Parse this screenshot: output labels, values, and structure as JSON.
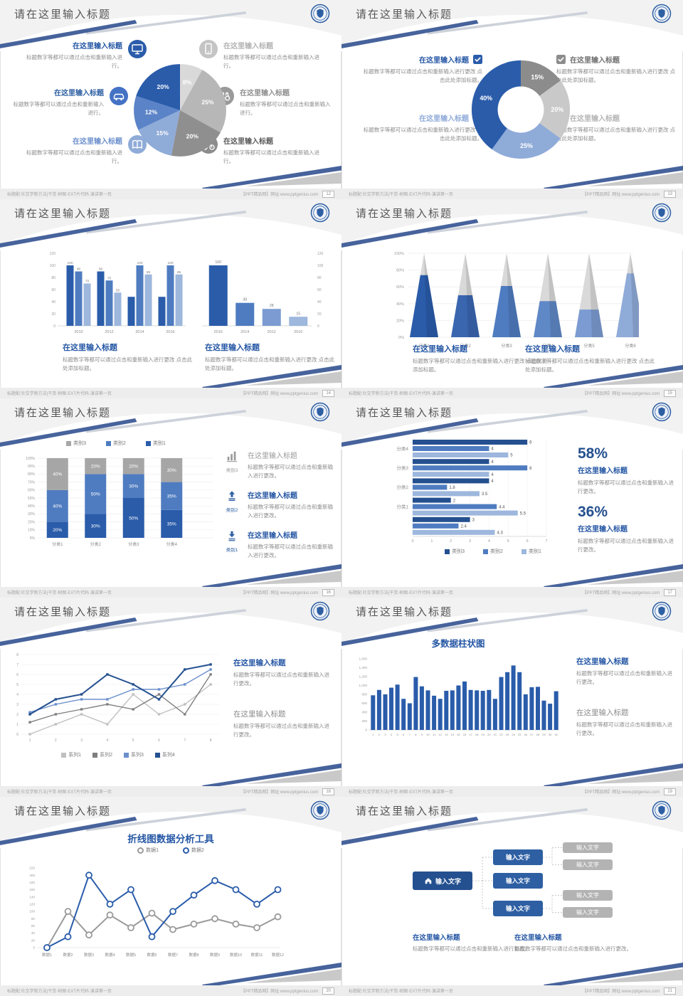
{
  "common": {
    "slide_title": "请在这里输入标题",
    "block_heading": "在这里输入标题",
    "body_a": "标题数字等都可以通过点击和重新输入进行。",
    "body_b": "标题数字等都可以通过点击和重新输入进行更改 点击此处添加标题。",
    "body_c": "标题数字等都可以通过点击和重新输入进行更改。",
    "footer_left": "标题配:社交学新方法|干货·树图·EXT片代码·演讲第一页",
    "footer_right": "【PPT精品网】网址:www.pptgenius.com",
    "accent_blue": "#2a5caa",
    "swoosh_blue": "#47639c",
    "node_label": "输入文字"
  },
  "slides": [
    {
      "page": "12",
      "icons": [
        "monitor",
        "car",
        "book",
        "phone",
        "binoculars",
        "bike"
      ]
    },
    {
      "page": "13",
      "icons": [
        "checkbox-blue",
        "checkbox-lightblue",
        "checkbox-darkgray",
        "checkbox-lightgray"
      ]
    },
    {
      "page": "14"
    },
    {
      "page": "15"
    },
    {
      "page": "16",
      "icons": [
        "bar-chart",
        "arrow-up",
        "arrow-down"
      ],
      "item_labels": [
        "类别3",
        "类别2",
        "类别1"
      ]
    },
    {
      "page": "17",
      "stat1": "58%",
      "stat2": "36%"
    },
    {
      "page": "18"
    },
    {
      "page": "19"
    },
    {
      "page": "20"
    },
    {
      "page": "21",
      "node_label": "输入文字"
    }
  ],
  "chart_data": [
    {
      "type": "pie",
      "slices": [
        {
          "label": "8%",
          "value": 8,
          "color": "#d9d9d9"
        },
        {
          "label": "25%",
          "value": 25,
          "color": "#b7b7b7"
        },
        {
          "label": "20%",
          "value": 20,
          "color": "#8f8f8f"
        },
        {
          "label": "15%",
          "value": 15,
          "color": "#8fabd8"
        },
        {
          "label": "12%",
          "value": 12,
          "color": "#5b83c7"
        },
        {
          "label": "20%",
          "value": 20,
          "color": "#2a5caa"
        }
      ]
    },
    {
      "type": "donut",
      "hole_ratio": 0.47,
      "slices": [
        {
          "label": "15%",
          "value": 15,
          "color": "#8c8c8c"
        },
        {
          "label": "20%",
          "value": 20,
          "color": "#c9c9c9"
        },
        {
          "label": "25%",
          "value": 25,
          "color": "#8fabd8"
        },
        {
          "label": "40%",
          "value": 40,
          "color": "#2a5caa"
        }
      ]
    },
    {
      "type": "grouped_bar",
      "categories": [
        "2010",
        "2012",
        "2014",
        "2016"
      ],
      "series": [
        {
          "name": "series1",
          "color": "#2a5caa",
          "values": [
            100,
            90,
            48,
            48
          ],
          "labels": [
            "100",
            "90",
            "",
            ""
          ]
        },
        {
          "name": "series2",
          "color": "#4f7cc0",
          "values": [
            90,
            75,
            100,
            100
          ],
          "labels": [
            "90",
            "75",
            "100",
            "100"
          ]
        },
        {
          "name": "series3",
          "color": "#9db7dd",
          "values": [
            70,
            55,
            85,
            85
          ],
          "labels": [
            "70",
            "55",
            "85",
            "85"
          ]
        }
      ],
      "ylim": [
        0,
        120
      ],
      "ytick_step": 20
    },
    {
      "type": "bar",
      "categories": [
        "2016",
        "2014",
        "2012",
        "2010"
      ],
      "values": [
        100,
        38,
        28,
        15
      ],
      "labels": [
        "100",
        "38",
        "28",
        "15"
      ],
      "colors": [
        "#2a5caa",
        "#4f7cc0",
        "#7b9bd2",
        "#9db7dd"
      ],
      "ylim": [
        0,
        120
      ],
      "ytick_step": 20,
      "axis_side": "right"
    },
    {
      "type": "pyramid",
      "categories": [
        "分类1",
        "分类2",
        "分类3",
        "分类4",
        "分类5",
        "分类6"
      ],
      "percent": [
        74,
        50,
        61,
        43,
        33,
        76
      ],
      "colors": [
        "#2a5caa",
        "#3a66b0",
        "#4f7cc0",
        "#5f88c7",
        "#7b9bd2",
        "#8fabd8"
      ],
      "top_color": "#d9d9d9",
      "yticks": [
        "0%",
        "20%",
        "40%",
        "60%",
        "80%",
        "100%"
      ]
    },
    {
      "type": "stacked_bar",
      "categories": [
        "分类1",
        "分类2",
        "分类3",
        "分类4"
      ],
      "series": [
        {
          "name": "类别1",
          "color": "#2a5caa",
          "values": [
            20,
            30,
            50,
            35
          ]
        },
        {
          "name": "类别2",
          "color": "#4f7cc0",
          "values": [
            40,
            50,
            30,
            35
          ]
        },
        {
          "name": "类别3",
          "color": "#a6a6a6",
          "values": [
            40,
            20,
            20,
            30
          ]
        }
      ],
      "legend_order": [
        "类别3",
        "类别2",
        "类别1"
      ],
      "legend_colors": [
        "#a6a6a6",
        "#4f7cc0",
        "#2a5caa"
      ],
      "ylim_pct": [
        0,
        100
      ],
      "ytick_step_pct": 10
    },
    {
      "type": "hbar",
      "groups": [
        {
          "label": "分类4",
          "values": [
            6,
            4,
            5
          ]
        },
        {
          "label": "分类3",
          "values": [
            4,
            6,
            4
          ]
        },
        {
          "label": "分类2",
          "values": [
            4,
            1.8,
            3.5
          ]
        },
        {
          "label": "分类1",
          "values": [
            2,
            4.4,
            5.5
          ]
        },
        {
          "label": "",
          "values": [
            3,
            2.4,
            4.3
          ]
        }
      ],
      "series_names": [
        "类别3",
        "类别2",
        "类别1"
      ],
      "series_colors": [
        "#24508f",
        "#4f7cc0",
        "#9db7dd"
      ],
      "xlim": [
        0,
        7
      ]
    },
    {
      "type": "line",
      "x": [
        1,
        2,
        3,
        4,
        5,
        6,
        7,
        8
      ],
      "series": [
        {
          "name": "系列1",
          "color": "#c0c0c0",
          "values": [
            0,
            1,
            2,
            1,
            4,
            2,
            3,
            5
          ]
        },
        {
          "name": "系列2",
          "color": "#7f7f7f",
          "values": [
            1.2,
            2,
            2.5,
            3,
            2.5,
            4,
            2,
            6
          ]
        },
        {
          "name": "系列3",
          "color": "#6b8fcc",
          "values": [
            2.2,
            3,
            3.5,
            3.5,
            4.5,
            4.5,
            5,
            6.5
          ]
        },
        {
          "name": "系列4",
          "color": "#24508f",
          "values": [
            2,
            3.5,
            4,
            6,
            5,
            3.5,
            6.5,
            7
          ]
        }
      ],
      "ylim": [
        0,
        8
      ]
    },
    {
      "type": "column",
      "title": "多数据柱状图",
      "x_labels": [
        "1",
        "2",
        "3",
        "4",
        "5",
        "6",
        "7",
        "8",
        "9",
        "10",
        "11",
        "12",
        "13",
        "14",
        "15",
        "16",
        "17",
        "18",
        "19",
        "20",
        "21",
        "22",
        "23",
        "24",
        "25",
        "26",
        "27",
        "28",
        "29",
        "30",
        "31"
      ],
      "values": [
        780,
        900,
        800,
        950,
        1020,
        700,
        600,
        1190,
        980,
        890,
        770,
        700,
        880,
        890,
        1000,
        1090,
        900,
        890,
        880,
        900,
        700,
        1190,
        1300,
        1450,
        1300,
        800,
        960,
        970,
        660,
        590,
        870
      ],
      "color": "#2a5caa",
      "ylim": [
        0,
        1600
      ],
      "ytick_step": 200
    },
    {
      "type": "line",
      "title": "折线图数据分析工具",
      "categories": [
        "数据1",
        "数据2",
        "数据3",
        "数据4",
        "数据5",
        "数据6",
        "数据7",
        "数据8",
        "数据9",
        "数据10",
        "数据11",
        "数据12"
      ],
      "series": [
        {
          "name": "数据1",
          "color": "#9a9a9a",
          "values": [
            0,
            100,
            35,
            90,
            55,
            95,
            50,
            65,
            80,
            65,
            55,
            85
          ]
        },
        {
          "name": "数据2",
          "color": "#2a5caa",
          "values": [
            0,
            30,
            200,
            120,
            160,
            30,
            100,
            145,
            185,
            160,
            120,
            160
          ]
        }
      ],
      "ylim": [
        0,
        220
      ],
      "ytick_step": 20,
      "marker": "ring"
    }
  ]
}
